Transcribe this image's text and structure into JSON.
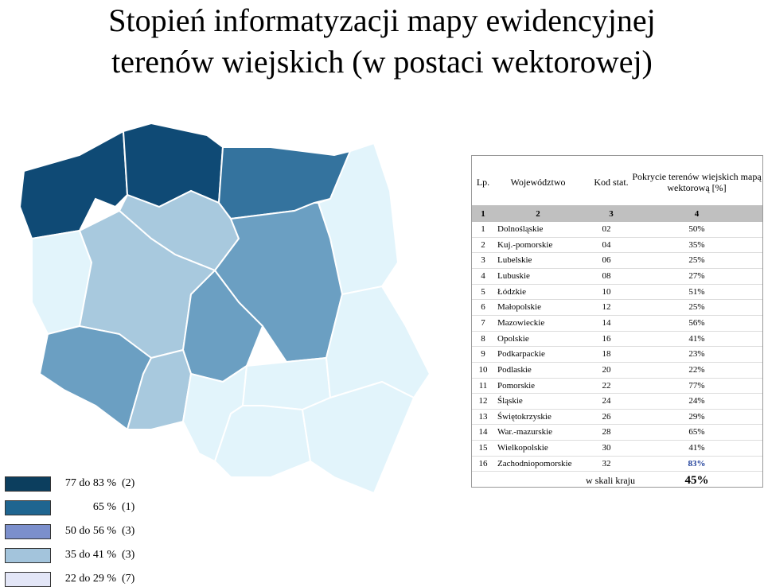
{
  "title": [
    "Stopień informatyzacji mapy ewidencyjnej",
    "terenów wiejskich (w postaci wektorowej)"
  ],
  "table": {
    "header": [
      "Lp.",
      "Województwo",
      "Kod stat.",
      "Pokrycie terenów wiejskich mapą wektorową [%]"
    ],
    "column_numbers": [
      "1",
      "2",
      "3",
      "4"
    ],
    "rows": [
      [
        "1",
        "Dolnośląskie",
        "02",
        "50%"
      ],
      [
        "2",
        "Kuj.-pomorskie",
        "04",
        "35%"
      ],
      [
        "3",
        "Lubelskie",
        "06",
        "25%"
      ],
      [
        "4",
        "Lubuskie",
        "08",
        "27%"
      ],
      [
        "5",
        "Łódzkie",
        "10",
        "51%"
      ],
      [
        "6",
        "Małopolskie",
        "12",
        "25%"
      ],
      [
        "7",
        "Mazowieckie",
        "14",
        "56%"
      ],
      [
        "8",
        "Opolskie",
        "16",
        "41%"
      ],
      [
        "9",
        "Podkarpackie",
        "18",
        "23%"
      ],
      [
        "10",
        "Podlaskie",
        "20",
        "22%"
      ],
      [
        "11",
        "Pomorskie",
        "22",
        "77%"
      ],
      [
        "12",
        "Śląskie",
        "24",
        "24%"
      ],
      [
        "13",
        "Świętokrzyskie",
        "26",
        "29%"
      ],
      [
        "14",
        "War.-mazurskie",
        "28",
        "65%"
      ],
      [
        "15",
        "Wielkopolskie",
        "30",
        "41%"
      ],
      [
        "16",
        "Zachodniopomorskie",
        "32",
        "83%"
      ]
    ],
    "footer": [
      "w skali kraju",
      "45%"
    ]
  },
  "legend": [
    {
      "label": "77 do 83 %",
      "count": "(2)",
      "color": "#0c3e5e"
    },
    {
      "label": "65 %",
      "count": "(1)",
      "color": "#1f6590"
    },
    {
      "label": "50 do 56 %",
      "count": "(3)",
      "color": "#7b8fcc"
    },
    {
      "label": "35 do 41 %",
      "count": "(3)",
      "color": "#a3c4dc"
    },
    {
      "label": "22 do 29 %",
      "count": "(7)",
      "color": "#e3e6f7"
    }
  ]
}
